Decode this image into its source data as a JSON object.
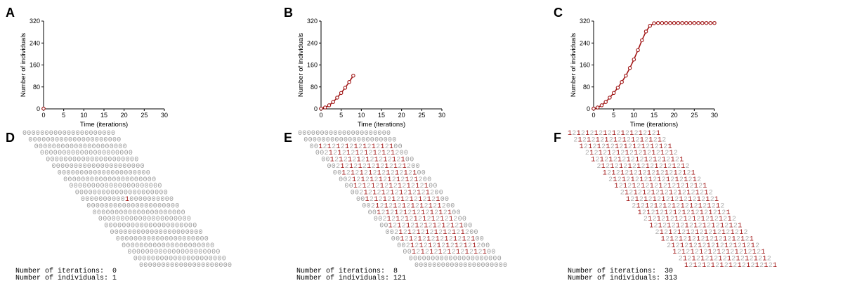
{
  "chart_data": [
    {
      "panel": "A",
      "type": "line",
      "xlabel": "Time (iterations)",
      "ylabel": "Number of individuals",
      "xlim": [
        0,
        30
      ],
      "ylim": [
        0,
        320
      ],
      "xticks": [
        0,
        5,
        10,
        15,
        20,
        25,
        30
      ],
      "yticks": [
        0,
        80,
        160,
        240,
        320
      ],
      "series": [
        {
          "x": [
            0
          ],
          "values": [
            1
          ]
        }
      ]
    },
    {
      "panel": "B",
      "type": "line",
      "xlabel": "Time (iterations)",
      "ylabel": "Number of individuals",
      "xlim": [
        0,
        30
      ],
      "ylim": [
        0,
        320
      ],
      "xticks": [
        0,
        5,
        10,
        15,
        20,
        25,
        30
      ],
      "yticks": [
        0,
        80,
        160,
        240,
        320
      ],
      "series": [
        {
          "x": [
            0,
            1,
            2,
            3,
            4,
            5,
            6,
            7,
            8
          ],
          "values": [
            1,
            5,
            13,
            25,
            41,
            58,
            77,
            98,
            121
          ]
        }
      ]
    },
    {
      "panel": "C",
      "type": "line",
      "xlabel": "Time (iterations)",
      "ylabel": "Number of individuals",
      "xlim": [
        0,
        30
      ],
      "ylim": [
        0,
        320
      ],
      "xticks": [
        0,
        5,
        10,
        15,
        20,
        25,
        30
      ],
      "yticks": [
        0,
        80,
        160,
        240,
        320
      ],
      "series": [
        {
          "x": [
            0,
            1,
            2,
            3,
            4,
            5,
            6,
            7,
            8,
            9,
            10,
            11,
            12,
            13,
            14,
            15,
            16,
            17,
            18,
            19,
            20,
            21,
            22,
            23,
            24,
            25,
            26,
            27,
            28,
            29,
            30
          ],
          "values": [
            1,
            5,
            13,
            25,
            41,
            58,
            77,
            98,
            121,
            149,
            180,
            214,
            250,
            282,
            303,
            312,
            313,
            313,
            313,
            313,
            313,
            313,
            313,
            313,
            313,
            313,
            313,
            313,
            313,
            313,
            313
          ]
        }
      ]
    }
  ],
  "grids": [
    {
      "panel": "D",
      "iterations_label": "Number of iterations:",
      "iterations": "0",
      "individuals_label": "Number of individuals:",
      "individuals": "1",
      "active_radius": 0,
      "border_twos": false
    },
    {
      "panel": "E",
      "iterations_label": "Number of iterations:",
      "iterations": "8",
      "individuals_label": "Number of individuals:",
      "individuals": "121",
      "active_radius": 8,
      "border_twos": false
    },
    {
      "panel": "F",
      "iterations_label": "Number of iterations:",
      "iterations": "30",
      "individuals_label": "Number of individuals:",
      "individuals": "313",
      "active_radius": 30,
      "border_twos": true
    }
  ],
  "colors": {
    "accent": "#a01515",
    "zero": "#9a9a9a",
    "two": "#b0b0b0",
    "axis": "#000000"
  }
}
